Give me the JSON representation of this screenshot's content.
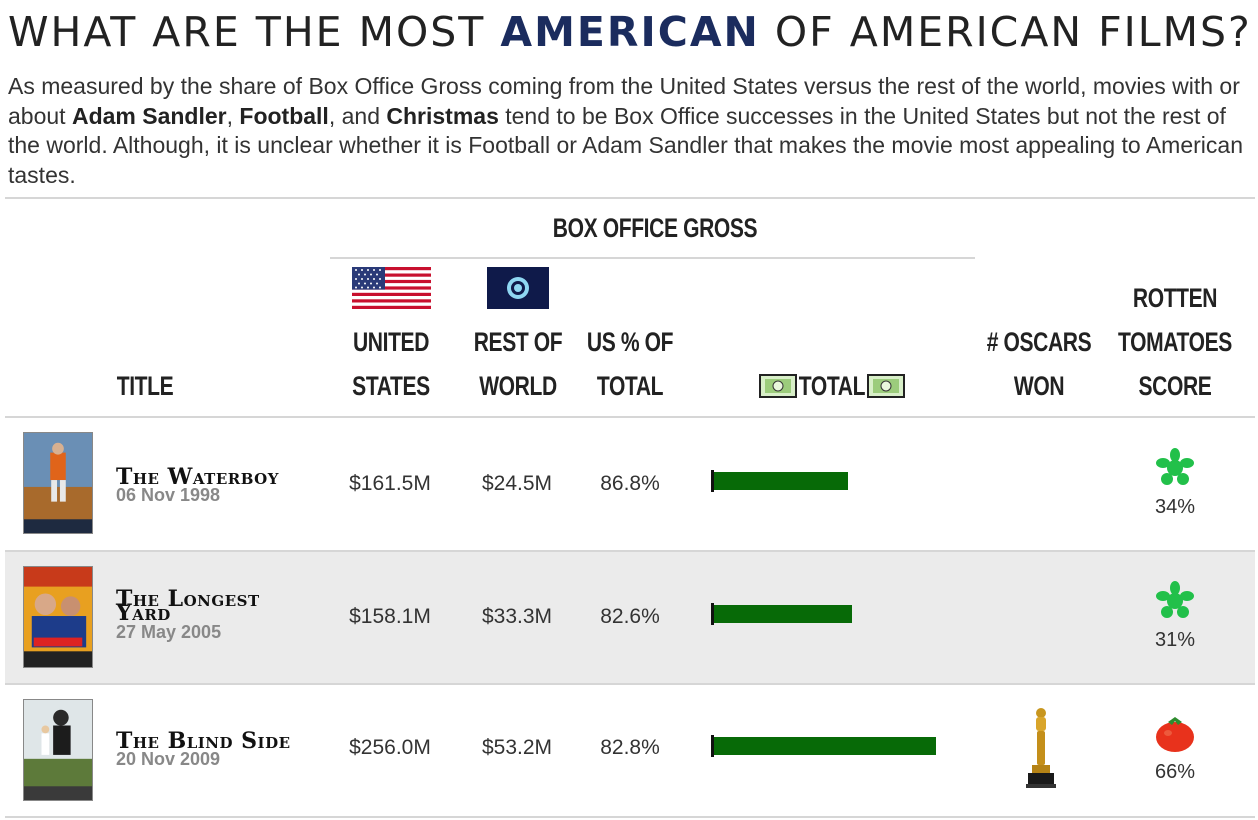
{
  "header": {
    "title_pre": "WHAT ARE THE MOST ",
    "title_accent": "AMERICAN",
    "title_post": " OF AMERICAN FILMS?",
    "sub_1": "As measured by the share of Box Office Gross coming from the United States versus the rest of the world, movies with or about ",
    "sub_b1": "Adam Sandler",
    "sub_2": ", ",
    "sub_b2": "Football",
    "sub_3": ", and ",
    "sub_b3": "Christmas",
    "sub_4": " tend to be Box Office successes in the United States but not the rest of the world. Although, it is unclear whether it is Football or Adam Sandler that makes the movie most appealing to American tastes."
  },
  "columns": {
    "group": "BOX OFFICE GROSS",
    "title": "TITLE",
    "us_1": "UNITED",
    "us_2": "STATES",
    "row_1": "REST OF",
    "row_2": "WORLD",
    "pct_1": "US % OF",
    "pct_2": "TOTAL",
    "total": "TOTAL",
    "oscars_1": "# OSCARS",
    "oscars_2": "WON",
    "rt_1": "ROTTEN",
    "rt_2": "TOMATOES",
    "rt_3": "SCORE"
  },
  "colors": {
    "accent": "#1b2c5e",
    "bar": "#076a07",
    "splat": "#22c04a",
    "tomato": "#e8321c"
  },
  "chart_data": {
    "type": "table",
    "title": "WHAT ARE THE MOST AMERICAN OF AMERICAN FILMS?",
    "bar_column": "TOTAL",
    "bar_max": 320,
    "rows": [
      {
        "title": "The Waterboy",
        "date": "06 Nov 1998",
        "us": "$161.5M",
        "world": "$24.5M",
        "pct": "86.8%",
        "total": 186.0,
        "oscars": 0,
        "rt": "34%",
        "rt_icon": "splat-icon"
      },
      {
        "title": "The Longest Yard",
        "date": "27 May 2005",
        "us": "$158.1M",
        "world": "$33.3M",
        "pct": "82.6%",
        "total": 191.4,
        "oscars": 0,
        "rt": "31%",
        "rt_icon": "splat-icon"
      },
      {
        "title": "The Blind Side",
        "date": "20 Nov 2009",
        "us": "$256.0M",
        "world": "$53.2M",
        "pct": "82.8%",
        "total": 309.2,
        "oscars": 1,
        "rt": "66%",
        "rt_icon": "tomato-icon"
      }
    ]
  }
}
